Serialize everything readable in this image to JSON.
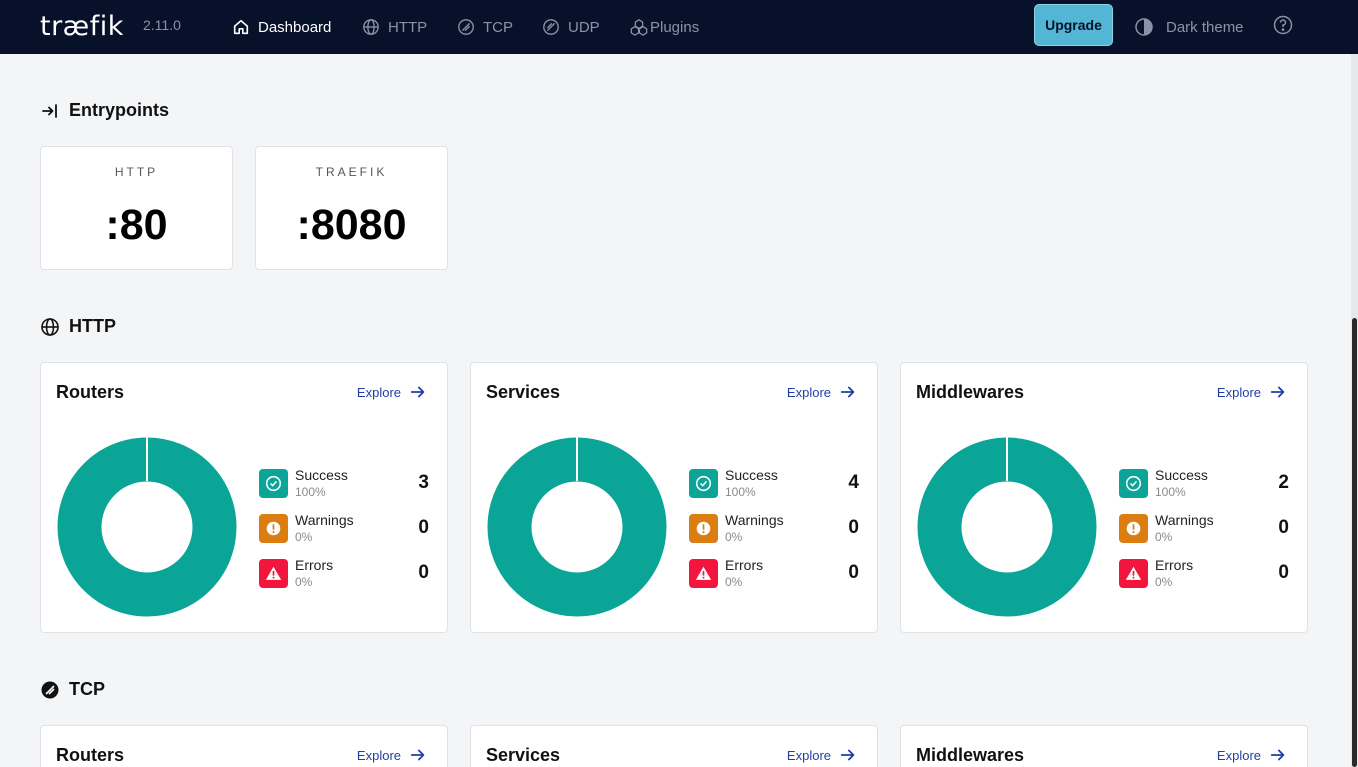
{
  "nav": {
    "logo": "træfik",
    "version": "2.11.0",
    "items": [
      {
        "label": "Dashboard",
        "icon": "home-icon"
      },
      {
        "label": "HTTP",
        "icon": "globe-icon"
      },
      {
        "label": "TCP",
        "icon": "tcp-icon"
      },
      {
        "label": "UDP",
        "icon": "udp-icon"
      },
      {
        "label": "Plugins",
        "icon": "plugins-icon"
      }
    ],
    "upgrade_label": "Upgrade",
    "theme_label": "Dark theme"
  },
  "entrypoints": {
    "title": "Entrypoints",
    "items": [
      {
        "name": "HTTP",
        "port": ":80"
      },
      {
        "name": "TRAEFIK",
        "port": ":8080"
      }
    ]
  },
  "http": {
    "title": "HTTP",
    "cards": [
      {
        "title": "Routers",
        "explore": "Explore",
        "success": {
          "label": "Success",
          "pct": "100%",
          "count": "3"
        },
        "warnings": {
          "label": "Warnings",
          "pct": "0%",
          "count": "0"
        },
        "errors": {
          "label": "Errors",
          "pct": "0%",
          "count": "0"
        }
      },
      {
        "title": "Services",
        "explore": "Explore",
        "success": {
          "label": "Success",
          "pct": "100%",
          "count": "4"
        },
        "warnings": {
          "label": "Warnings",
          "pct": "0%",
          "count": "0"
        },
        "errors": {
          "label": "Errors",
          "pct": "0%",
          "count": "0"
        }
      },
      {
        "title": "Middlewares",
        "explore": "Explore",
        "success": {
          "label": "Success",
          "pct": "100%",
          "count": "2"
        },
        "warnings": {
          "label": "Warnings",
          "pct": "0%",
          "count": "0"
        },
        "errors": {
          "label": "Errors",
          "pct": "0%",
          "count": "0"
        }
      }
    ]
  },
  "tcp": {
    "title": "TCP",
    "cards": [
      {
        "title": "Routers",
        "explore": "Explore"
      },
      {
        "title": "Services",
        "explore": "Explore"
      },
      {
        "title": "Middlewares",
        "explore": "Explore"
      }
    ]
  },
  "colors": {
    "nav_bg": "#07112a",
    "accent": "#52b6d4",
    "success": "#0aa597",
    "warning": "#db7d11",
    "error": "#f2153d",
    "link": "#1f3fa6"
  }
}
